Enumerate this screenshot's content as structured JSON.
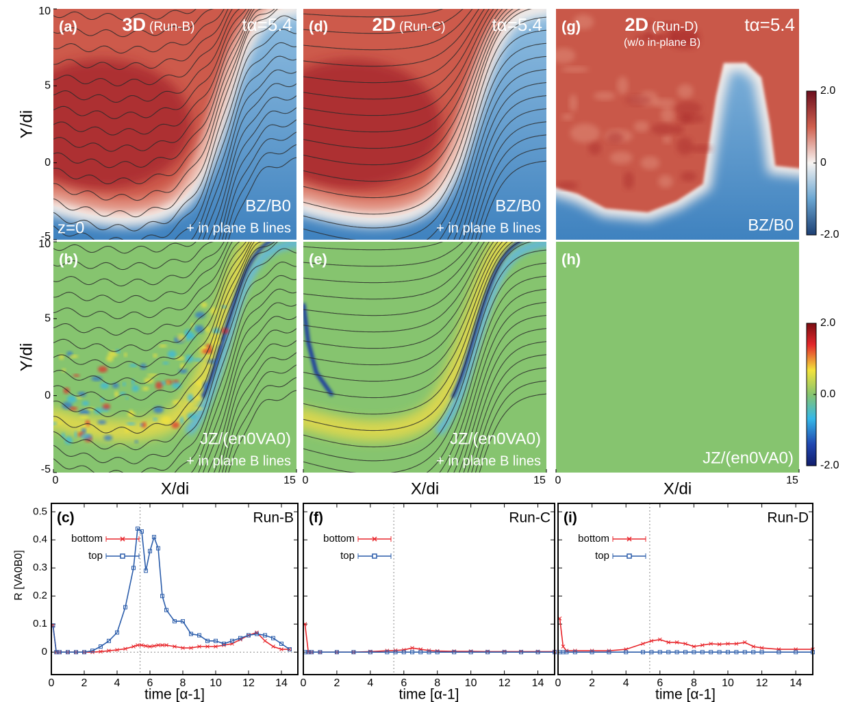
{
  "chart_data": [
    {
      "type": "heatmap",
      "panel_label": "(a)",
      "title": "3D",
      "subtitle": "(Run-B)",
      "time_label": "tα=5.4",
      "annotations": [
        "BZ/B0",
        "+ in plane B lines"
      ],
      "corner_label": "z=0",
      "ylabel": "Y/di",
      "xlim": [
        0,
        15
      ],
      "ylim": [
        -5,
        10
      ],
      "yticks": [
        -5,
        0,
        5,
        10
      ]
    },
    {
      "type": "heatmap",
      "panel_label": "(d)",
      "title": "2D",
      "subtitle": "(Run-C)",
      "time_label": "tα=5.4",
      "annotations": [
        "BZ/B0",
        "+ in plane B lines"
      ],
      "xlim": [
        0,
        15
      ],
      "ylim": [
        -5,
        10
      ]
    },
    {
      "type": "heatmap",
      "panel_label": "(g)",
      "title": "2D",
      "subtitle": "(Run-D)",
      "note": "(w/o in-plane B)",
      "time_label": "tα=5.4",
      "annotations": [
        "BZ/B0"
      ],
      "xlim": [
        0,
        15
      ],
      "ylim": [
        -5,
        10
      ],
      "colorbar_ticks": [
        {
          "value": 2,
          "label": "2.0"
        },
        0,
        {
          "value": -2,
          "label": "-2.0"
        }
      ]
    },
    {
      "type": "heatmap",
      "panel_label": "(b)",
      "annotations": [
        "JZ/(en0VA0)",
        "+ in plane B lines"
      ],
      "ylabel": "Y/di",
      "xlabel": "X/di",
      "xlim": [
        0,
        15
      ],
      "ylim": [
        -5,
        10
      ],
      "xticks": [
        0,
        15
      ],
      "yticks": [
        -5,
        0,
        5,
        10
      ]
    },
    {
      "type": "heatmap",
      "panel_label": "(e)",
      "annotations": [
        "JZ/(en0VA0)",
        "+ in plane B lines"
      ],
      "xlabel": "X/di",
      "xlim": [
        0,
        15
      ],
      "ylim": [
        -5,
        10
      ],
      "xticks": [
        0,
        15
      ]
    },
    {
      "type": "heatmap",
      "panel_label": "(h)",
      "annotations": [
        "JZ/(en0VA0)"
      ],
      "xlabel": "X/di",
      "xlim": [
        0,
        15
      ],
      "ylim": [
        -5,
        10
      ],
      "xticks": [
        0,
        15
      ],
      "colorbar_ticks": [
        {
          "value": 2,
          "label": "2.0"
        },
        {
          "value": 0,
          "label": "0.0"
        },
        {
          "value": -2,
          "label": "-2.0"
        }
      ]
    },
    {
      "type": "line",
      "panel_label": "(c)",
      "title": "Run-B",
      "ylabel": "R [VA0B0]",
      "xlabel": "time [α-1]",
      "xlim": [
        0,
        15
      ],
      "ylim": [
        -0.08,
        0.53
      ],
      "xticks": [
        0,
        2,
        4,
        6,
        8,
        10,
        12,
        14
      ],
      "yticks": [
        0,
        0.1,
        0.2,
        0.3,
        0.4,
        0.5
      ],
      "vline": 5.4,
      "hline": 0,
      "x": [
        0.1,
        0.3,
        0.5,
        1,
        1.5,
        2,
        2.5,
        3,
        3.5,
        4,
        4.5,
        5,
        5.25,
        5.5,
        5.75,
        6,
        6.25,
        6.5,
        6.75,
        7,
        7.5,
        8,
        8.5,
        9,
        9.5,
        10,
        10.5,
        11,
        11.5,
        12,
        12.5,
        13,
        13.5,
        14,
        14.5
      ],
      "series": [
        {
          "name": "bottom",
          "color": "#e8262b",
          "marker": "x",
          "values": [
            0.095,
            0,
            0,
            0,
            0,
            0,
            0,
            0.002,
            0.005,
            0.008,
            0.012,
            0.02,
            0.025,
            0.025,
            0.022,
            0.02,
            0.022,
            0.025,
            0.025,
            0.025,
            0.02,
            0.015,
            0.015,
            0.02,
            0.02,
            0.02,
            0.025,
            0.03,
            0.045,
            0.06,
            0.07,
            0.04,
            0.02,
            0.01,
            0.01
          ]
        },
        {
          "name": "top",
          "color": "#2a5caa",
          "marker": "square",
          "values": [
            0.095,
            0,
            0,
            0,
            0,
            0,
            0.005,
            0.02,
            0.04,
            0.07,
            0.16,
            0.3,
            0.44,
            0.43,
            0.29,
            0.36,
            0.41,
            0.37,
            0.2,
            0.15,
            0.11,
            0.11,
            0.065,
            0.06,
            0.04,
            0.04,
            0.03,
            0.04,
            0.05,
            0.06,
            0.065,
            0.06,
            0.05,
            0.03,
            0.01
          ]
        }
      ]
    },
    {
      "type": "line",
      "panel_label": "(f)",
      "title": "Run-C",
      "xlabel": "time [α-1]",
      "xlim": [
        0,
        15
      ],
      "ylim": [
        -0.08,
        0.53
      ],
      "xticks": [
        0,
        2,
        4,
        6,
        8,
        10,
        12,
        14
      ],
      "yticks": [
        0,
        0.1,
        0.2,
        0.3,
        0.4,
        0.5
      ],
      "vline": 5.4,
      "hline": 0,
      "x": [
        0.1,
        0.3,
        0.5,
        1,
        2,
        3,
        4,
        5,
        5.5,
        6,
        6.5,
        7,
        7.5,
        8,
        9,
        10,
        11,
        12,
        13,
        14,
        15
      ],
      "series": [
        {
          "name": "bottom",
          "color": "#e8262b",
          "marker": "x",
          "values": [
            0.1,
            0,
            0,
            0,
            0,
            0,
            0.002,
            0.005,
            0.006,
            0.008,
            0.015,
            0.01,
            0.006,
            0.004,
            0.003,
            0.003,
            0.002,
            0.002,
            0.002,
            0.002,
            0.002
          ]
        },
        {
          "name": "top",
          "color": "#2a5caa",
          "marker": "square",
          "values": [
            0,
            0,
            0,
            0,
            0,
            0,
            0,
            0,
            0,
            0,
            0,
            0,
            0,
            0,
            0,
            0,
            0,
            0,
            0,
            0,
            0
          ]
        }
      ]
    },
    {
      "type": "line",
      "panel_label": "(i)",
      "title": "Run-D",
      "xlabel": "time [α-1]",
      "xlim": [
        0,
        15
      ],
      "ylim": [
        -0.08,
        0.53
      ],
      "xticks": [
        0,
        2,
        4,
        6,
        8,
        10,
        12,
        14
      ],
      "yticks": [
        0,
        0.1,
        0.2,
        0.3,
        0.4,
        0.5
      ],
      "vline": 5.4,
      "hline": 0,
      "x": [
        0.1,
        0.3,
        0.5,
        1,
        2,
        3,
        4,
        5,
        5.5,
        6,
        6.5,
        7,
        7.5,
        8,
        8.5,
        9,
        9.5,
        10,
        10.5,
        11,
        11.5,
        12,
        13,
        14,
        15
      ],
      "series": [
        {
          "name": "bottom",
          "color": "#e8262b",
          "marker": "x",
          "values": [
            0.12,
            0.02,
            0.005,
            0.005,
            0.005,
            0.005,
            0.01,
            0.03,
            0.04,
            0.045,
            0.035,
            0.035,
            0.03,
            0.02,
            0.025,
            0.03,
            0.028,
            0.03,
            0.03,
            0.035,
            0.02,
            0.015,
            0.01,
            0.01,
            0.01
          ]
        },
        {
          "name": "top",
          "color": "#2a5caa",
          "marker": "square",
          "values": [
            0,
            0,
            0,
            0,
            0,
            0,
            0,
            0,
            0,
            0,
            0,
            0,
            0,
            0,
            0,
            0,
            0,
            0,
            0,
            0,
            0,
            0,
            0,
            0,
            0
          ]
        }
      ]
    }
  ]
}
